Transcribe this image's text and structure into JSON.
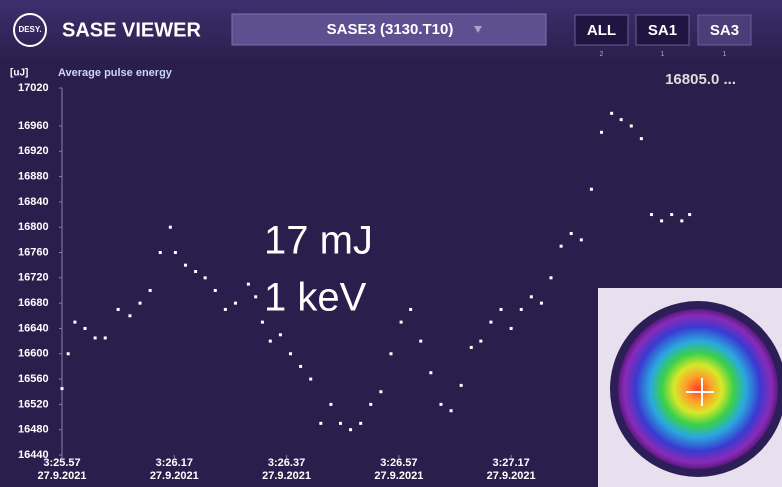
{
  "header": {
    "logo": "DESY.",
    "title": "SASE VIEWER",
    "dropdown": "SASE3 (3130.T10)",
    "buttons": [
      {
        "label": "ALL",
        "count": "2"
      },
      {
        "label": "SA1",
        "count": "1"
      },
      {
        "label": "SA3",
        "count": "1"
      }
    ]
  },
  "chart_data": {
    "type": "scatter",
    "title": "Average pulse energy",
    "y_label": "[uJ]",
    "current_value": "16805.0 ...",
    "annotations": [
      "17 mJ",
      "1 keV"
    ],
    "x_date": "27.9.2021",
    "x": [
      12357.0,
      12358.1,
      12359.3,
      12361.1,
      12362.9,
      12364.7,
      12367.0,
      12369.1,
      12370.9,
      12372.7,
      12374.5,
      12376.3,
      12377.2,
      12379.0,
      12380.8,
      12382.5,
      12384.3,
      12386.1,
      12387.9,
      12390.2,
      12391.5,
      12392.7,
      12394.1,
      12395.9,
      12397.7,
      12399.5,
      12401.3,
      12403.1,
      12404.9,
      12406.6,
      12408.4,
      12410.2,
      12412.0,
      12413.8,
      12415.6,
      12417.4,
      12419.1,
      12420.9,
      12422.7,
      12424.5,
      12426.3,
      12428.1,
      12429.9,
      12431.6,
      12433.4,
      12435.2,
      12437.0,
      12438.8,
      12440.6,
      12442.4,
      12444.1,
      12445.9,
      12447.7,
      12449.5,
      12451.3,
      12453.1,
      12454.9,
      12456.6,
      12458.4,
      12460.2,
      12462.0,
      12463.8,
      12465.6,
      12467.4,
      12468.8
    ],
    "series": [
      {
        "name": "Average pulse energy",
        "color": "#ffffff",
        "values": [
          16545,
          16600,
          16650,
          16640,
          16625,
          16625,
          16670,
          16660,
          16680,
          16700,
          16760,
          16800,
          16760,
          16740,
          16730,
          16720,
          16700,
          16670,
          16680,
          16710,
          16690,
          16650,
          16620,
          16630,
          16600,
          16580,
          16560,
          16490,
          16520,
          16490,
          16480,
          16490,
          16520,
          16540,
          16600,
          16650,
          16670,
          16620,
          16570,
          16520,
          16510,
          16550,
          16610,
          16620,
          16650,
          16670,
          16640,
          16670,
          16690,
          16680,
          16720,
          16770,
          16790,
          16780,
          16860,
          16950,
          16980,
          16970,
          16960,
          16940,
          16820,
          16810,
          16820,
          16810,
          16820
        ]
      }
    ],
    "xlim": [
      12357,
      12484
    ],
    "ylim": [
      16440,
      17020
    ],
    "xticks": [
      {
        "value": 12357,
        "label": "3:25.57"
      },
      {
        "value": 12377,
        "label": "3:26.17"
      },
      {
        "value": 12397,
        "label": "3:26.37"
      },
      {
        "value": 12417,
        "label": "3:26.57"
      },
      {
        "value": 12437,
        "label": "3:27.17"
      }
    ],
    "yticks": [
      16440,
      16480,
      16520,
      16560,
      16600,
      16640,
      16680,
      16720,
      16760,
      16800,
      16840,
      16880,
      16920,
      16960,
      17020
    ]
  }
}
